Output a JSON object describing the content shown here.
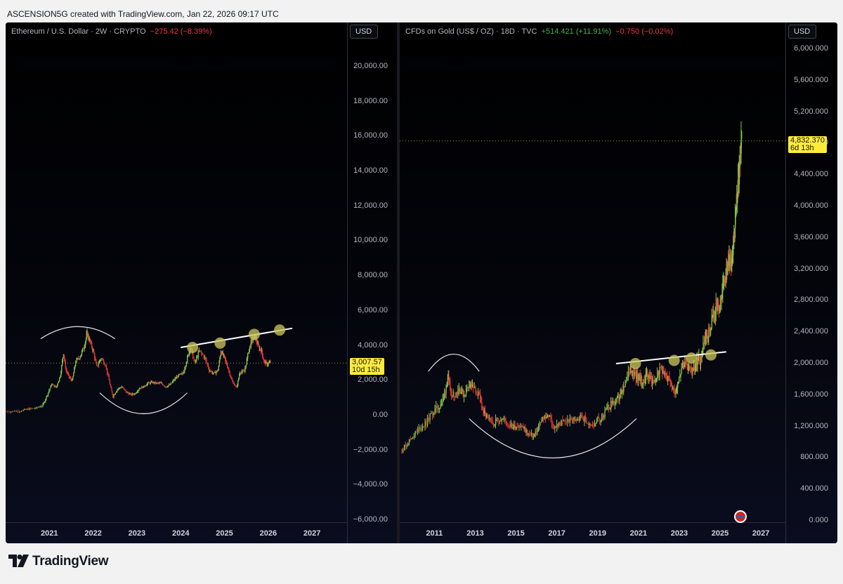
{
  "header": {
    "text": "ASCENSION5G created with TradingView.com, Jan 22, 2026 09:17 UTC"
  },
  "footer": {
    "brand": "TradingView",
    "logo_icon": "tradingview-logo-icon"
  },
  "theme": {
    "up": "#8bc34a",
    "down": "#e53935",
    "accent": "#ffeb3b",
    "marker": "#c6c35a"
  },
  "chart_data": [
    {
      "type": "candlestick",
      "legend": {
        "symbol": "Ethereum / U.S. Dollar · 2W · CRYPTO",
        "change": "−275.42 (−8.39%)"
      },
      "currency_button": "USD",
      "y_ticks": [
        "20,000.00",
        "18,000.00",
        "16,000.00",
        "14,000.00",
        "12,000.00",
        "10,000.00",
        "8,000.00",
        "6,000.00",
        "4,000.00",
        "2,000.00",
        "0.00",
        "−2,000.00",
        "−4,000.00",
        "−6,000.00"
      ],
      "y_tick_values": [
        20000,
        18000,
        16000,
        14000,
        12000,
        10000,
        8000,
        6000,
        4000,
        2000,
        0,
        -2000,
        -4000,
        -6000
      ],
      "ylim": [
        -6000,
        20000
      ],
      "x_ticks": [
        "2021",
        "2022",
        "2023",
        "2024",
        "2025",
        "2026",
        "2027"
      ],
      "x_tick_values": [
        2021,
        2022,
        2023,
        2024,
        2025,
        2026,
        2027
      ],
      "xlim": [
        2020.0,
        2027.8
      ],
      "last_price": {
        "value": 3007.57,
        "label": "3,007.57",
        "countdown": "10d 15h"
      },
      "close_series": [
        [
          2020.0,
          230
        ],
        [
          2020.2,
          240
        ],
        [
          2020.4,
          300
        ],
        [
          2020.55,
          380
        ],
        [
          2020.7,
          430
        ],
        [
          2020.85,
          600
        ],
        [
          2020.95,
          1200
        ],
        [
          2021.05,
          1800
        ],
        [
          2021.15,
          1600
        ],
        [
          2021.25,
          2300
        ],
        [
          2021.32,
          3600
        ],
        [
          2021.38,
          2600
        ],
        [
          2021.45,
          2200
        ],
        [
          2021.52,
          2000
        ],
        [
          2021.6,
          3100
        ],
        [
          2021.7,
          3400
        ],
        [
          2021.8,
          4000
        ],
        [
          2021.86,
          4700
        ],
        [
          2021.92,
          4300
        ],
        [
          2022.0,
          3700
        ],
        [
          2022.08,
          2800
        ],
        [
          2022.18,
          3300
        ],
        [
          2022.28,
          2900
        ],
        [
          2022.38,
          1800
        ],
        [
          2022.45,
          1100
        ],
        [
          2022.55,
          1500
        ],
        [
          2022.65,
          1650
        ],
        [
          2022.75,
          1350
        ],
        [
          2022.85,
          1200
        ],
        [
          2022.95,
          1250
        ],
        [
          2023.05,
          1550
        ],
        [
          2023.15,
          1650
        ],
        [
          2023.25,
          1850
        ],
        [
          2023.35,
          1900
        ],
        [
          2023.45,
          1850
        ],
        [
          2023.55,
          1850
        ],
        [
          2023.65,
          1650
        ],
        [
          2023.75,
          1750
        ],
        [
          2023.85,
          2050
        ],
        [
          2023.95,
          2300
        ],
        [
          2024.05,
          2400
        ],
        [
          2024.15,
          3300
        ],
        [
          2024.22,
          3900
        ],
        [
          2024.32,
          3000
        ],
        [
          2024.42,
          3700
        ],
        [
          2024.55,
          3300
        ],
        [
          2024.65,
          2600
        ],
        [
          2024.75,
          2400
        ],
        [
          2024.85,
          2600
        ],
        [
          2024.92,
          3700
        ],
        [
          2025.0,
          3300
        ],
        [
          2025.08,
          2700
        ],
        [
          2025.18,
          1900
        ],
        [
          2025.28,
          1600
        ],
        [
          2025.35,
          2500
        ],
        [
          2025.45,
          2500
        ],
        [
          2025.55,
          3700
        ],
        [
          2025.62,
          4300
        ],
        [
          2025.7,
          4500
        ],
        [
          2025.78,
          3900
        ],
        [
          2025.85,
          3700
        ],
        [
          2025.9,
          3100
        ],
        [
          2025.97,
          2950
        ],
        [
          2026.05,
          3050
        ]
      ],
      "arcs": [
        {
          "kind": "top",
          "x": [
            2020.8,
            2022.5
          ],
          "y_base": 4400,
          "y_peak": 5100
        },
        {
          "kind": "bottom",
          "x": [
            2022.15,
            2024.15
          ],
          "y_base": 1300,
          "y_trough": 100
        }
      ],
      "trendline": {
        "x": [
          2024.0,
          2026.55
        ],
        "y": [
          3900,
          5000
        ]
      },
      "markers": [
        {
          "x": 2024.27,
          "y": 3900
        },
        {
          "x": 2024.9,
          "y": 4150
        },
        {
          "x": 2025.68,
          "y": 4650
        },
        {
          "x": 2026.26,
          "y": 4900
        }
      ]
    },
    {
      "type": "candlestick",
      "legend": {
        "symbol": "CFDs on Gold (US$ / OZ) · 18D · TVC",
        "change_pos": "+514.421 (+11.91%)",
        "change_neg": "−0.750 (−0.02%)"
      },
      "currency_button": "USD",
      "y_ticks": [
        "6,000.000",
        "5,600.000",
        "5,200.000",
        "4,800.000",
        "4,400.000",
        "4,000.000",
        "3,600.000",
        "3,200.000",
        "2,800.000",
        "2,400.000",
        "2,000.000",
        "1,600.000",
        "1,200.000",
        "800.000",
        "400.000",
        "0.000"
      ],
      "y_tick_values": [
        6000,
        5600,
        5200,
        4800,
        4400,
        4000,
        3600,
        3200,
        2800,
        2400,
        2000,
        1600,
        1200,
        800,
        400,
        0
      ],
      "ylim": [
        -400,
        6300
      ],
      "x_ticks": [
        "2011",
        "2013",
        "2015",
        "2017",
        "2019",
        "2021",
        "2023",
        "2025",
        "2027"
      ],
      "x_tick_values": [
        2011,
        2013,
        2015,
        2017,
        2019,
        2021,
        2023,
        2025,
        2027
      ],
      "xlim": [
        2009.3,
        2028.2
      ],
      "last_price": {
        "value": 4832.37,
        "label": "4,832.370",
        "countdown": "6d 13h"
      },
      "close_series": [
        [
          2009.4,
          900
        ],
        [
          2009.7,
          1000
        ],
        [
          2010.0,
          1100
        ],
        [
          2010.3,
          1180
        ],
        [
          2010.6,
          1250
        ],
        [
          2010.9,
          1380
        ],
        [
          2011.2,
          1450
        ],
        [
          2011.45,
          1550
        ],
        [
          2011.65,
          1820
        ],
        [
          2011.8,
          1650
        ],
        [
          2011.95,
          1600
        ],
        [
          2012.2,
          1680
        ],
        [
          2012.45,
          1600
        ],
        [
          2012.7,
          1750
        ],
        [
          2012.9,
          1680
        ],
        [
          2013.2,
          1580
        ],
        [
          2013.4,
          1380
        ],
        [
          2013.6,
          1300
        ],
        [
          2013.85,
          1230
        ],
        [
          2014.1,
          1300
        ],
        [
          2014.35,
          1290
        ],
        [
          2014.6,
          1240
        ],
        [
          2014.85,
          1190
        ],
        [
          2015.1,
          1220
        ],
        [
          2015.35,
          1180
        ],
        [
          2015.6,
          1100
        ],
        [
          2015.85,
          1070
        ],
        [
          2016.1,
          1200
        ],
        [
          2016.35,
          1320
        ],
        [
          2016.6,
          1340
        ],
        [
          2016.85,
          1180
        ],
        [
          2017.1,
          1230
        ],
        [
          2017.4,
          1270
        ],
        [
          2017.7,
          1280
        ],
        [
          2017.95,
          1300
        ],
        [
          2018.2,
          1330
        ],
        [
          2018.45,
          1260
        ],
        [
          2018.7,
          1200
        ],
        [
          2018.95,
          1280
        ],
        [
          2019.2,
          1300
        ],
        [
          2019.45,
          1420
        ],
        [
          2019.7,
          1500
        ],
        [
          2019.95,
          1520
        ],
        [
          2020.15,
          1600
        ],
        [
          2020.35,
          1730
        ],
        [
          2020.6,
          1950
        ],
        [
          2020.8,
          1880
        ],
        [
          2021.0,
          1830
        ],
        [
          2021.2,
          1740
        ],
        [
          2021.4,
          1880
        ],
        [
          2021.6,
          1800
        ],
        [
          2021.8,
          1790
        ],
        [
          2022.0,
          1900
        ],
        [
          2022.2,
          1940
        ],
        [
          2022.4,
          1820
        ],
        [
          2022.6,
          1720
        ],
        [
          2022.8,
          1650
        ],
        [
          2022.95,
          1800
        ],
        [
          2023.15,
          1980
        ],
        [
          2023.35,
          1960
        ],
        [
          2023.55,
          1930
        ],
        [
          2023.75,
          1950
        ],
        [
          2023.9,
          2050
        ],
        [
          2024.05,
          2030
        ],
        [
          2024.2,
          2300
        ],
        [
          2024.35,
          2350
        ],
        [
          2024.5,
          2420
        ],
        [
          2024.65,
          2630
        ],
        [
          2024.8,
          2700
        ],
        [
          2024.95,
          2640
        ],
        [
          2025.1,
          2900
        ],
        [
          2025.25,
          3100
        ],
        [
          2025.4,
          3300
        ],
        [
          2025.5,
          3350
        ],
        [
          2025.6,
          3400
        ],
        [
          2025.7,
          3700
        ],
        [
          2025.8,
          4000
        ],
        [
          2025.88,
          4300
        ],
        [
          2025.95,
          4500
        ],
        [
          2026.05,
          4832
        ]
      ],
      "arcs": [
        {
          "kind": "top",
          "x": [
            2010.7,
            2013.2
          ],
          "y_base": 1900,
          "y_peak": 2120
        },
        {
          "kind": "bottom",
          "x": [
            2012.7,
            2020.9
          ],
          "y_base": 1300,
          "y_trough": 800
        }
      ],
      "trendline": {
        "x": [
          2019.9,
          2025.3
        ],
        "y": [
          2000,
          2150
        ]
      },
      "markers": [
        {
          "x": 2020.85,
          "y": 2000
        },
        {
          "x": 2022.75,
          "y": 2040
        },
        {
          "x": 2023.6,
          "y": 2070
        },
        {
          "x": 2024.55,
          "y": 2110
        }
      ]
    }
  ]
}
